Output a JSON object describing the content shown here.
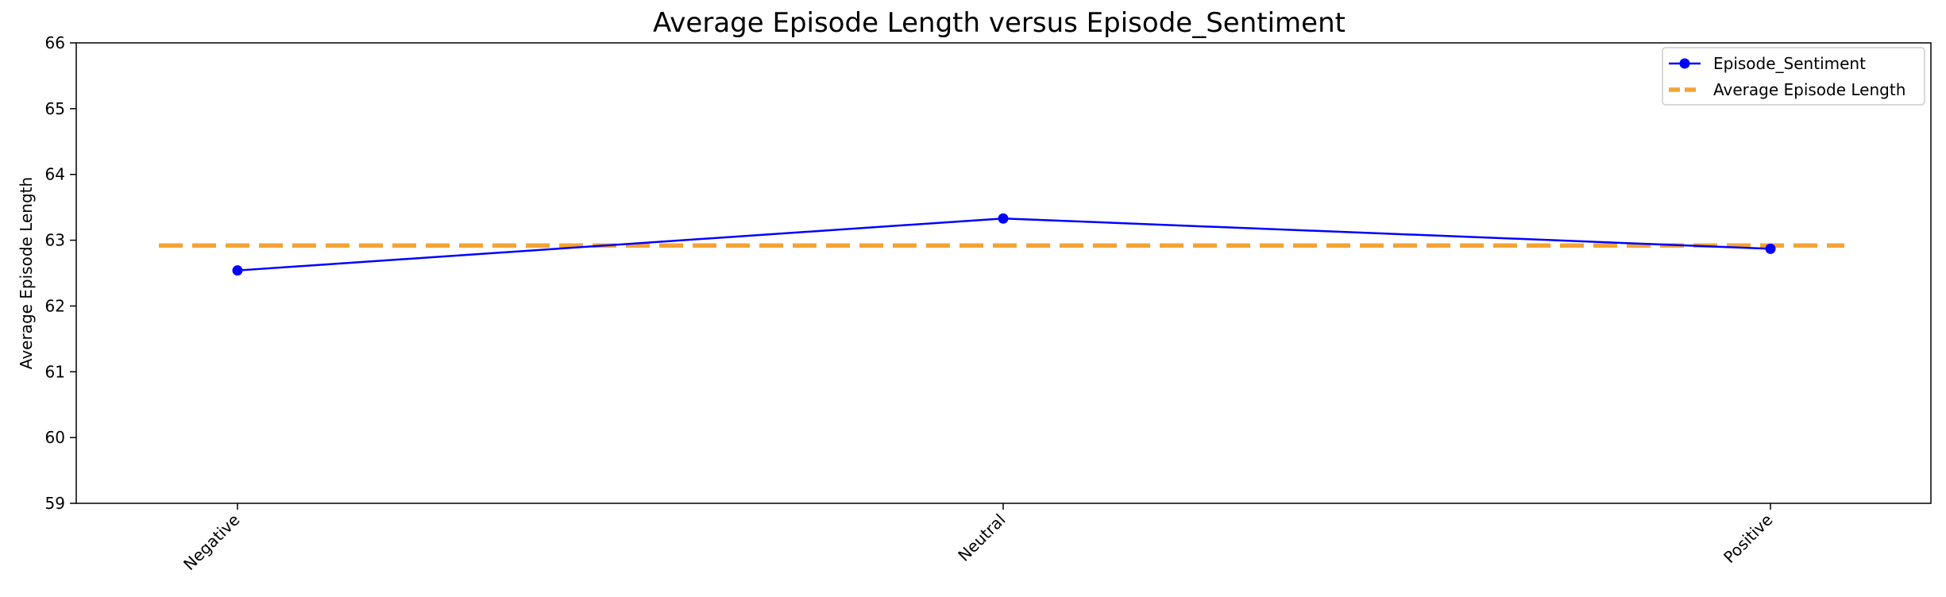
{
  "chart_data": {
    "type": "line",
    "title": "Average Episode Length versus Episode_Sentiment",
    "xlabel": "",
    "ylabel": "Average Episode Length",
    "categories": [
      "Negative",
      "Neutral",
      "Positive"
    ],
    "series": [
      {
        "name": "Episode_Sentiment",
        "values": [
          62.54,
          63.33,
          62.87
        ],
        "color": "#0000ff",
        "style": "solid-with-markers"
      }
    ],
    "reference_line": {
      "name": "Average Episode Length",
      "value": 62.92,
      "color": "#f4a334",
      "style": "dashed"
    },
    "ylim": [
      59,
      66
    ],
    "yticks": [
      59,
      60,
      61,
      62,
      63,
      64,
      65,
      66
    ],
    "grid": false,
    "legend_position": "top-right"
  }
}
